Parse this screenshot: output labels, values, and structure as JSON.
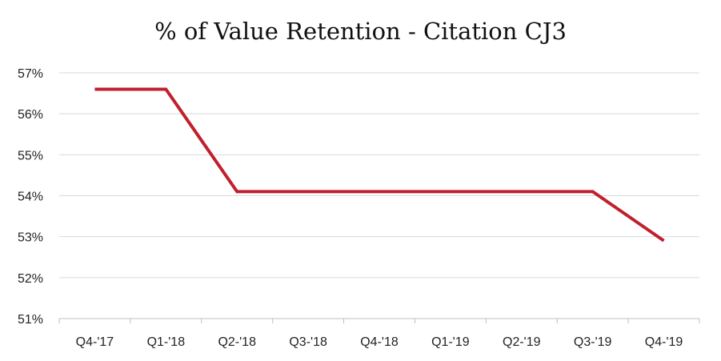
{
  "chart_data": {
    "type": "line",
    "title": "% of Value Retention - Citation CJ3",
    "xlabel": "",
    "ylabel": "",
    "categories": [
      "Q4-'17",
      "Q1-'18",
      "Q2-'18",
      "Q3-'18",
      "Q4-'18",
      "Q1-'19",
      "Q2-'19",
      "Q3-'19",
      "Q4-'19"
    ],
    "series": [
      {
        "values": [
          56.6,
          56.6,
          54.1,
          54.1,
          54.1,
          54.1,
          54.1,
          54.1,
          52.9
        ]
      }
    ],
    "ylim": [
      51,
      57
    ],
    "yticks": [
      "51%",
      "52%",
      "53%",
      "54%",
      "55%",
      "56%",
      "57%"
    ],
    "grid": true,
    "legend": "none",
    "line_color": "#c0202e"
  }
}
